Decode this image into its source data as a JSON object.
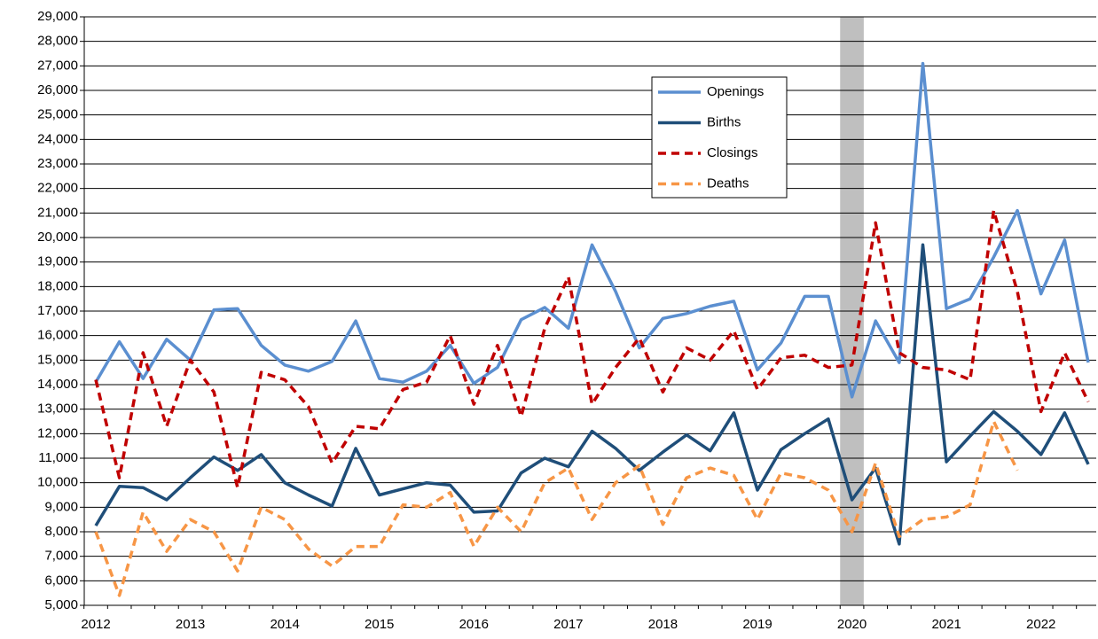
{
  "chart_data": {
    "type": "line",
    "categories": [
      "2012",
      null,
      null,
      null,
      "2013",
      null,
      null,
      null,
      "2014",
      null,
      null,
      null,
      "2015",
      null,
      null,
      null,
      "2016",
      null,
      null,
      null,
      "2017",
      null,
      null,
      null,
      "2018",
      null,
      null,
      null,
      "2019",
      null,
      null,
      null,
      "2020",
      null,
      null,
      null,
      "2021",
      null,
      null,
      null,
      "2022",
      null,
      null
    ],
    "ylim": [
      5000,
      29000
    ],
    "yticks": [
      {
        "value": 5000,
        "label": "5,000"
      },
      {
        "value": 6000,
        "label": "6,000"
      },
      {
        "value": 7000,
        "label": "7,000"
      },
      {
        "value": 8000,
        "label": "8,000"
      },
      {
        "value": 9000,
        "label": "9,000"
      },
      {
        "value": 10000,
        "label": "10,000"
      },
      {
        "value": 11000,
        "label": "11,000"
      },
      {
        "value": 12000,
        "label": "12,000"
      },
      {
        "value": 13000,
        "label": "13,000"
      },
      {
        "value": 14000,
        "label": "14,000"
      },
      {
        "value": 15000,
        "label": "15,000"
      },
      {
        "value": 16000,
        "label": "16,000"
      },
      {
        "value": 17000,
        "label": "17,000"
      },
      {
        "value": 18000,
        "label": "18,000"
      },
      {
        "value": 19000,
        "label": "19,000"
      },
      {
        "value": 20000,
        "label": "20,000"
      },
      {
        "value": 21000,
        "label": "21,000"
      },
      {
        "value": 22000,
        "label": "22,000"
      },
      {
        "value": 23000,
        "label": "23,000"
      },
      {
        "value": 24000,
        "label": "24,000"
      },
      {
        "value": 25000,
        "label": "25,000"
      },
      {
        "value": 26000,
        "label": "26,000"
      },
      {
        "value": 27000,
        "label": "27,000"
      },
      {
        "value": 28000,
        "label": "28,000"
      },
      {
        "value": 29000,
        "label": "29,000"
      }
    ],
    "grid": true,
    "shaded_band": {
      "from": 31.5,
      "to": 32.5,
      "color": "#bfbfbf"
    },
    "legend": "top-center",
    "series": [
      {
        "name": "Openings",
        "color": "#5b8fd0",
        "dashed": false,
        "values": [
          14100,
          15750,
          14250,
          15850,
          15000,
          17050,
          17100,
          15600,
          14800,
          14550,
          14950,
          16600,
          14250,
          14100,
          14550,
          15600,
          14050,
          14700,
          16650,
          17150,
          16300,
          19700,
          17800,
          15500,
          16700,
          16900,
          17200,
          17400,
          14600,
          15700,
          17600,
          17600,
          13500,
          16600,
          14900,
          27100,
          17100,
          17500,
          19200,
          21100,
          17700,
          19900,
          14900
        ]
      },
      {
        "name": "Births",
        "color": "#1f4e79",
        "dashed": false,
        "values": [
          8250,
          9850,
          9800,
          9300,
          10200,
          11050,
          10500,
          11150,
          10000,
          9500,
          9050,
          11400,
          9500,
          9750,
          10000,
          9900,
          8800,
          8850,
          10400,
          11000,
          10650,
          12100,
          11400,
          10500,
          11250,
          11950,
          11300,
          12850,
          9700,
          11350,
          12000,
          12600,
          9300,
          10600,
          7500,
          19700,
          10850,
          11900,
          12900,
          12100,
          11150,
          12850,
          10750
        ]
      },
      {
        "name": "Closings",
        "color": "#c00000",
        "dashed": true,
        "values": [
          14200,
          10200,
          15300,
          12300,
          15000,
          13700,
          9800,
          14500,
          14200,
          13100,
          10800,
          12300,
          12200,
          13800,
          14100,
          16000,
          13200,
          15600,
          12700,
          16300,
          18400,
          13200,
          14700,
          15900,
          13700,
          15500,
          15000,
          16200,
          13800,
          15100,
          15200,
          14700,
          14800,
          20600,
          15300,
          14700,
          14600,
          14200,
          21100,
          17800,
          12900,
          15300,
          13300
        ]
      },
      {
        "name": "Deaths",
        "color": "#f79646",
        "dashed": true,
        "values": [
          8000,
          5400,
          8800,
          7200,
          8500,
          8000,
          6400,
          9000,
          8500,
          7300,
          6600,
          7400,
          7400,
          9100,
          9000,
          9600,
          7400,
          9000,
          8000,
          10000,
          10600,
          8500,
          10000,
          10700,
          8300,
          10200,
          10600,
          10300,
          8500,
          10400,
          10200,
          9700,
          8000,
          10800,
          7800,
          8500,
          8600,
          9100,
          12500,
          10500,
          null,
          null,
          null
        ]
      }
    ]
  }
}
